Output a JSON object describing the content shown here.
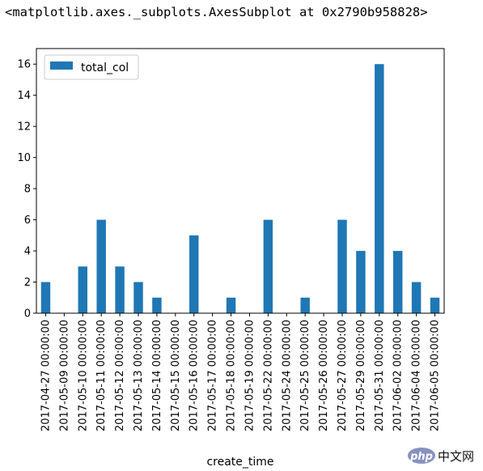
{
  "output_repr": "<matplotlib.axes._subplots.AxesSubplot at 0x2790b958828>",
  "watermark": {
    "logo_text": "php",
    "site_text": "中文网"
  },
  "colors": {
    "bar": "#1f77b4",
    "axis": "#000000"
  },
  "chart_data": {
    "type": "bar",
    "xlabel": "create_time",
    "ylabel": "",
    "ylim": [
      0,
      17
    ],
    "yticks": [
      0,
      2,
      4,
      6,
      8,
      10,
      12,
      14,
      16
    ],
    "legend": {
      "placement": "upper-left",
      "entries": [
        "total_col"
      ]
    },
    "grid": false,
    "categories": [
      "2017-04-27 00:00:00",
      "2017-05-09 00:00:00",
      "2017-05-10 00:00:00",
      "2017-05-11 00:00:00",
      "2017-05-12 00:00:00",
      "2017-05-13 00:00:00",
      "2017-05-14 00:00:00",
      "2017-05-15 00:00:00",
      "2017-05-16 00:00:00",
      "2017-05-17 00:00:00",
      "2017-05-18 00:00:00",
      "2017-05-19 00:00:00",
      "2017-05-22 00:00:00",
      "2017-05-24 00:00:00",
      "2017-05-25 00:00:00",
      "2017-05-26 00:00:00",
      "2017-05-27 00:00:00",
      "2017-05-29 00:00:00",
      "2017-05-31 00:00:00",
      "2017-06-02 00:00:00",
      "2017-06-04 00:00:00",
      "2017-06-05 00:00:00"
    ],
    "series": [
      {
        "name": "total_col",
        "values": [
          2,
          0,
          3,
          6,
          3,
          2,
          1,
          0,
          5,
          0,
          1,
          0,
          6,
          0,
          1,
          0,
          6,
          4,
          16,
          4,
          2,
          1
        ]
      }
    ]
  }
}
